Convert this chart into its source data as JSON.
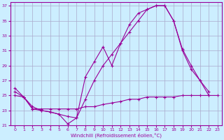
{
  "xlabel": "Windchill (Refroidissement éolien,°C)",
  "bg_color": "#cceeff",
  "grid_color": "#aaaacc",
  "line_color": "#990099",
  "xlim": [
    -0.5,
    23.5
  ],
  "ylim": [
    21,
    37.5
  ],
  "yticks": [
    21,
    23,
    25,
    27,
    29,
    31,
    33,
    35,
    37
  ],
  "xticks": [
    0,
    1,
    2,
    3,
    4,
    5,
    6,
    7,
    8,
    9,
    10,
    11,
    12,
    13,
    14,
    15,
    16,
    17,
    18,
    19,
    20,
    21,
    22,
    23
  ],
  "line1_x": [
    0,
    1,
    2,
    3,
    4,
    5,
    6,
    7,
    8,
    9,
    10,
    11,
    12,
    13,
    14,
    15,
    16,
    17,
    18,
    19,
    20,
    21,
    22,
    23
  ],
  "line1_y": [
    26,
    24.8,
    23.5,
    23.0,
    22.8,
    22.5,
    21.2,
    22.0,
    27.5,
    29.5,
    31.5,
    29.0,
    32.0,
    34.5,
    36.0,
    36.5,
    37.0,
    37.0,
    35.0,
    31.2,
    29.0,
    27.0,
    25.0,
    null
  ],
  "line2_x": [
    0,
    1,
    2,
    3,
    4,
    5,
    6,
    7,
    8,
    9,
    10,
    11,
    12,
    13,
    14,
    15,
    16,
    17,
    18,
    19,
    20,
    21,
    22,
    23
  ],
  "line2_y": [
    25.0,
    24.8,
    23.2,
    23.2,
    23.2,
    23.2,
    23.2,
    23.2,
    23.5,
    23.5,
    23.8,
    24.0,
    24.2,
    24.5,
    24.5,
    24.8,
    24.8,
    24.8,
    24.8,
    25.0,
    25.0,
    25.0,
    25.0,
    25.0
  ],
  "line3_x": [
    0,
    1,
    2,
    3,
    4,
    5,
    6,
    7,
    8,
    9,
    10,
    11,
    12,
    13,
    14,
    15,
    16,
    17,
    18,
    19,
    20,
    21,
    22,
    23
  ],
  "line3_y": [
    25.5,
    24.8,
    23.2,
    23.0,
    22.8,
    22.5,
    22.2,
    22.0,
    24.5,
    27.0,
    29.0,
    30.5,
    32.0,
    33.5,
    35.0,
    36.5,
    37.0,
    37.0,
    35.0,
    31.0,
    28.5,
    27.0,
    25.5,
    null
  ]
}
